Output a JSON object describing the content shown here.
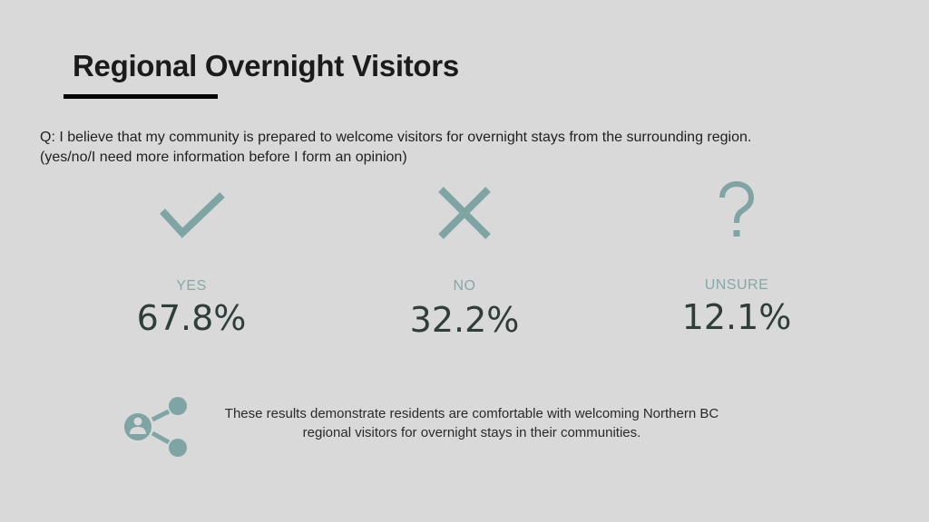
{
  "slide": {
    "title": "Regional Overnight Visitors",
    "question_line1": "Q: I believe that my community is prepared to welcome visitors for overnight stays from the surrounding region.",
    "question_line2": "(yes/no/I need more information before I form an opinion)"
  },
  "answers": [
    {
      "icon": "check-icon",
      "label": "YES",
      "value": "67.8%"
    },
    {
      "icon": "x-icon",
      "label": "NO",
      "value": "32.2%"
    },
    {
      "icon": "question-mark-icon",
      "label": "UNSURE",
      "value": "12.1%"
    }
  ],
  "summary": {
    "icon": "share-network-icon",
    "line1": "These results demonstrate residents are comfortable with welcoming Northern BC",
    "line2": "regional visitors for overnight stays in their communities."
  },
  "colors": {
    "background": "#d9d9d9",
    "accent": "#7ea5a3",
    "value_text": "#2f3d3b",
    "label_text": "#86a8a6"
  }
}
